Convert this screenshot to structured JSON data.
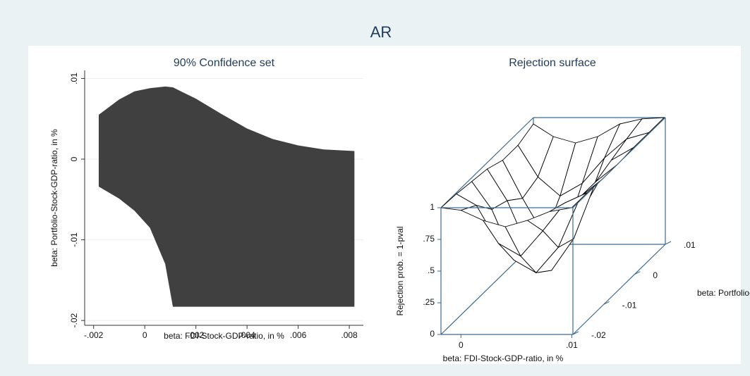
{
  "title": "AR",
  "chart_data": [
    {
      "type": "area",
      "title": "90% Confidence set",
      "xlabel": "beta: FDI-Stock-GDP-ratio, in %",
      "ylabel": "beta: Portfolio-Stock-GDP-ratio, in %",
      "xlim": [
        -0.00235,
        0.00855
      ],
      "ylim": [
        -0.0206,
        0.011
      ],
      "xticks": [
        {
          "value": -0.002,
          "label": "-.002"
        },
        0,
        {
          "value": 0.002,
          "label": ".002"
        },
        {
          "value": 0.004,
          "label": ".004"
        },
        {
          "value": 0.006,
          "label": ".006"
        },
        {
          "value": 0.008,
          "label": ".008"
        }
      ],
      "yticks": [
        {
          "value": 0.01,
          "label": ".01"
        },
        0,
        {
          "value": -0.01,
          "label": "-.01"
        },
        {
          "value": -0.02,
          "label": "-.02"
        }
      ],
      "grid": true,
      "color": "#404040",
      "x": [
        -0.0018,
        -0.001,
        -0.0004,
        0.0002,
        0.0008,
        0.0011,
        0.002,
        0.003,
        0.004,
        0.005,
        0.006,
        0.007,
        0.0082
      ],
      "upper": [
        0.0055,
        0.0074,
        0.0084,
        0.0088,
        0.009,
        0.0089,
        0.0075,
        0.0056,
        0.0038,
        0.0025,
        0.0017,
        0.0012,
        0.001
      ],
      "lower": [
        -0.0034,
        -0.0049,
        -0.0064,
        -0.0085,
        -0.013,
        -0.0183,
        -0.0183,
        -0.0183,
        -0.0183,
        -0.0183,
        -0.0183,
        -0.0183,
        -0.0183
      ]
    },
    {
      "type": "surface",
      "title": "Rejection surface",
      "xlabel": "beta: FDI-Stock-GDP-ratio, in %",
      "ylabel": "beta: Portfolio-Stock-GDP-ratio, in %",
      "zlabel": "Rejection prob. = 1-pval",
      "xlim": [
        -0.0018,
        0.0101
      ],
      "ylim": [
        -0.02,
        0.01
      ],
      "zlim": [
        0,
        1
      ],
      "xticks": [
        0,
        {
          "value": 0.01,
          "label": ".01"
        }
      ],
      "yticks": [
        {
          "value": -0.02,
          "label": "-.02"
        },
        {
          "value": -0.01,
          "label": "-.01"
        },
        0,
        {
          "value": 0.01,
          "label": ".01"
        }
      ],
      "zticks": [
        0,
        {
          "value": 0.25,
          "label": ".25"
        },
        {
          "value": 0.5,
          "label": ".5"
        },
        {
          "value": 0.75,
          "label": ".75"
        },
        1
      ],
      "x": [
        -0.0018,
        0,
        0.002,
        0.004,
        0.006,
        0.008,
        0.01
      ],
      "y": [
        -0.02,
        -0.015,
        -0.01,
        -0.005,
        0,
        0.005,
        0.01
      ],
      "z": [
        [
          1,
          0.98,
          0.9,
          0.85,
          0.9,
          0.97,
          1
        ],
        [
          0.99,
          0.9,
          0.6,
          0.5,
          0.7,
          0.92,
          1
        ],
        [
          0.97,
          0.75,
          0.35,
          0.25,
          0.45,
          0.85,
          0.99
        ],
        [
          0.95,
          0.7,
          0.3,
          0.15,
          0.4,
          0.85,
          0.99
        ],
        [
          0.9,
          0.6,
          0.3,
          0.35,
          0.6,
          0.9,
          1
        ],
        [
          0.9,
          0.65,
          0.5,
          0.6,
          0.8,
          0.95,
          1
        ],
        [
          0.95,
          0.85,
          0.8,
          0.85,
          0.95,
          0.99,
          1
        ]
      ]
    }
  ]
}
